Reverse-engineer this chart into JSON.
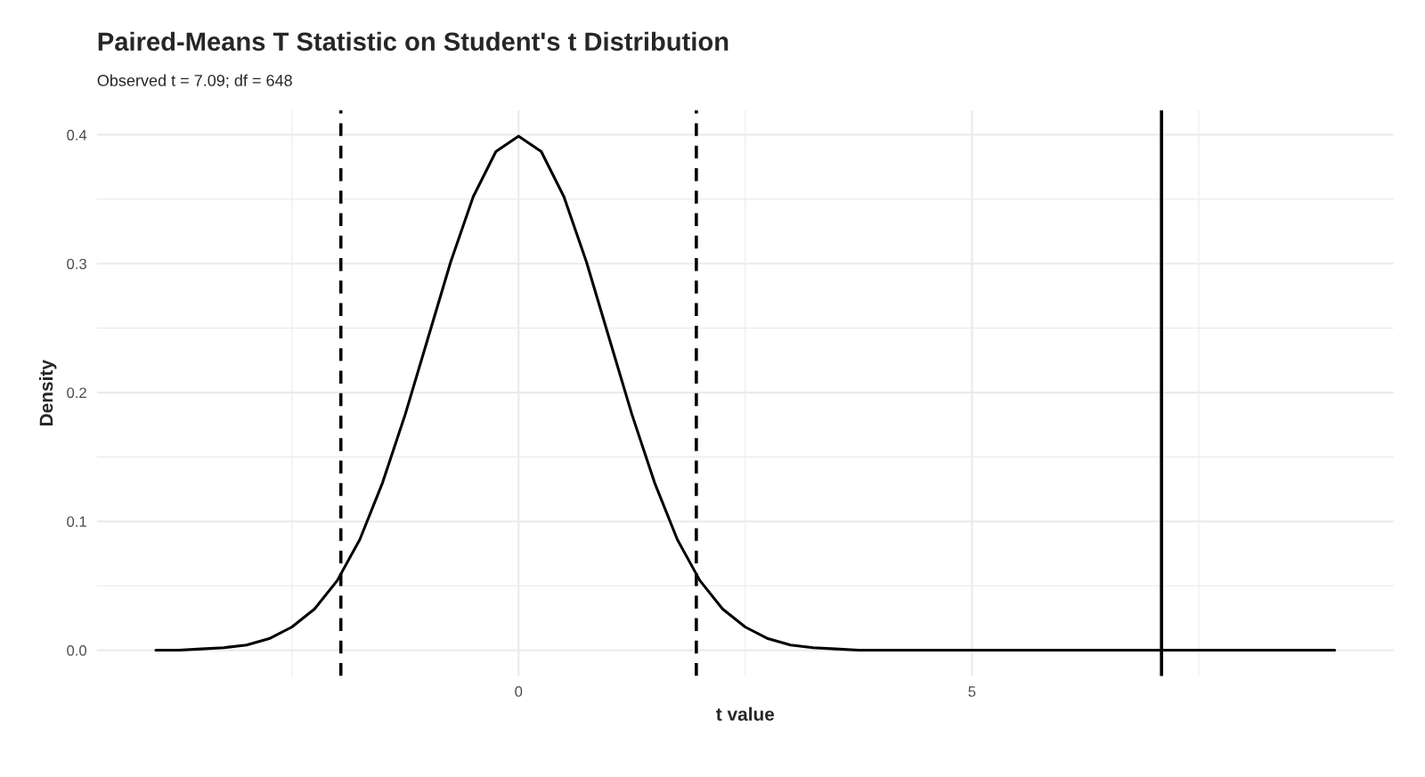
{
  "chart_data": {
    "type": "line",
    "title": "Paired-Means T Statistic on Student's t Distribution",
    "subtitle": "Observed t = 7.09; df = 648",
    "xlabel": "t value",
    "ylabel": "Density",
    "x": [
      -4,
      -3.75,
      -3.5,
      -3.25,
      -3,
      -2.75,
      -2.5,
      -2.25,
      -2,
      -1.75,
      -1.5,
      -1.25,
      -1,
      -0.75,
      -0.5,
      -0.25,
      0,
      0.25,
      0.5,
      0.75,
      1,
      1.25,
      1.5,
      1.75,
      2,
      2.25,
      2.5,
      2.75,
      3,
      3.25,
      3.5,
      3.75,
      4,
      5,
      6,
      7,
      8,
      9
    ],
    "series": [
      {
        "color": "#000000",
        "values": [
          0,
          0,
          0.001,
          0.002,
          0.004,
          0.009,
          0.018,
          0.032,
          0.054,
          0.086,
          0.13,
          0.183,
          0.242,
          0.301,
          0.352,
          0.387,
          0.399,
          0.387,
          0.352,
          0.301,
          0.242,
          0.183,
          0.13,
          0.086,
          0.054,
          0.032,
          0.018,
          0.009,
          0.004,
          0.002,
          0.001,
          0,
          0,
          0,
          0,
          0,
          0,
          0
        ]
      }
    ],
    "ref_lines": [
      {
        "axis": "x",
        "value": -1.96,
        "color": "#000000",
        "line_style": "dashed"
      },
      {
        "axis": "x",
        "value": 1.96,
        "color": "#000000",
        "line_style": "dashed"
      },
      {
        "axis": "x",
        "value": 7.09,
        "color": "#000000",
        "line_style": "solid"
      }
    ],
    "xlim": [
      -4.65,
      9.65
    ],
    "ylim": [
      -0.02,
      0.419
    ],
    "xticks": [
      {
        "value": -2.5,
        "label": null
      },
      0,
      {
        "value": 2.5,
        "label": null
      },
      5,
      {
        "value": 7.5,
        "label": null
      }
    ],
    "yticks": [
      {
        "value": 0,
        "label": "0.0"
      },
      {
        "value": 0.05,
        "label": null
      },
      0.1,
      {
        "value": 0.15,
        "label": null
      },
      0.2,
      {
        "value": 0.25,
        "label": null
      },
      0.3,
      {
        "value": 0.35,
        "label": null
      },
      0.4
    ],
    "grid": true,
    "legend": false,
    "marker": "none",
    "line_style": "solid"
  }
}
